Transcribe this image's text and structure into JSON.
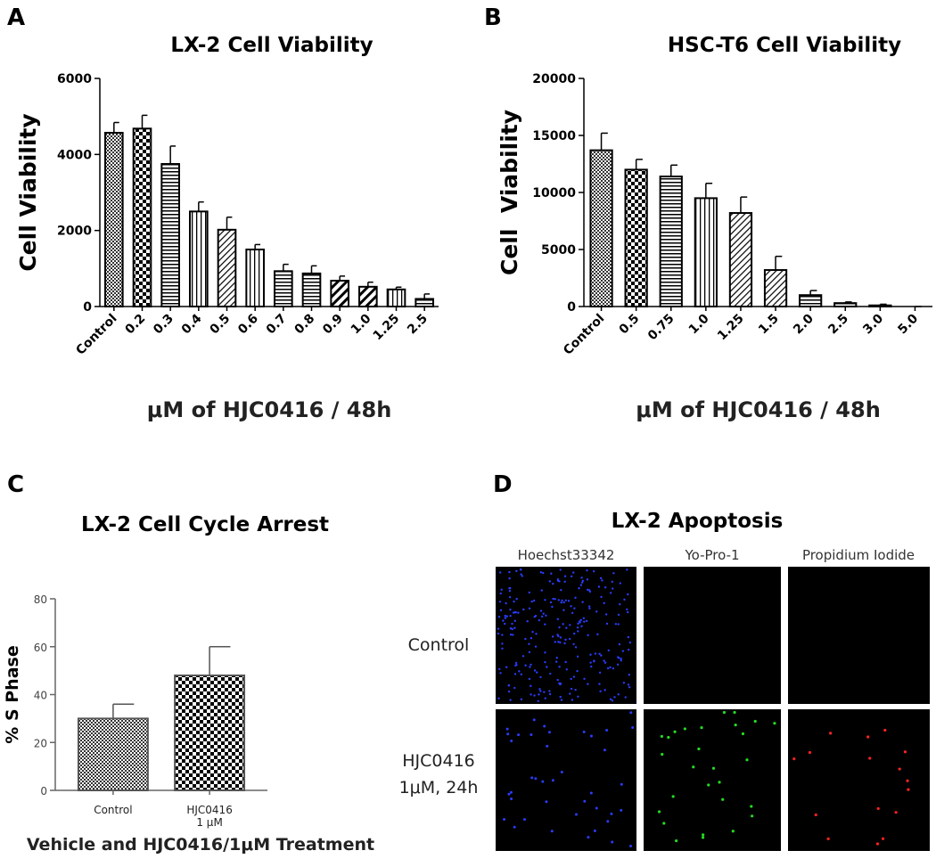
{
  "chart_data": [
    {
      "type": "bar",
      "panel": "A",
      "title": "LX-2 Cell Viability",
      "ylabel": "Cell Viability",
      "xlabel": "μM of HJC0416 / 48h",
      "categories": [
        "Control",
        "0.2",
        "0.3",
        "0.4",
        "0.5",
        "0.6",
        "0.7",
        "0.8",
        "0.9",
        "1.0",
        "1.25",
        "2.5"
      ],
      "values": [
        4570,
        4680,
        3750,
        2500,
        2020,
        1500,
        930,
        870,
        680,
        520,
        450,
        200
      ],
      "errors": [
        270,
        350,
        470,
        250,
        330,
        130,
        180,
        200,
        120,
        120,
        60,
        130
      ],
      "patterns": [
        "fine",
        "checker",
        "hlines",
        "vlines",
        "diag",
        "vlines",
        "hlines",
        "hlines",
        "diag-thick",
        "diag-thick",
        "vlines",
        "hlines"
      ],
      "color": "#000000",
      "ylim": [
        0,
        6000
      ],
      "yticks": [
        0,
        2000,
        4000,
        6000
      ]
    },
    {
      "type": "bar",
      "panel": "B",
      "title": "HSC-T6 Cell Viability",
      "ylabel": "Cell  Viability",
      "xlabel": "μM of HJC0416 / 48h",
      "categories": [
        "Control",
        "0.5",
        "0.75",
        "1.0",
        "1.25",
        "1.5",
        "2.0",
        "2.5",
        "3.0",
        "5.0"
      ],
      "values": [
        13700,
        12000,
        11400,
        9500,
        8200,
        3200,
        1000,
        300,
        100,
        0
      ],
      "errors": [
        1500,
        900,
        1000,
        1300,
        1400,
        1200,
        400,
        100,
        100,
        0
      ],
      "patterns": [
        "fine",
        "checker",
        "hlines",
        "vlines",
        "diag",
        "diag",
        "hlines",
        "hlines",
        "hlines",
        "hlines"
      ],
      "color": "#000000",
      "ylim": [
        0,
        20000
      ],
      "yticks": [
        0,
        5000,
        10000,
        15000,
        20000
      ]
    },
    {
      "type": "bar",
      "panel": "C",
      "title": "LX-2 Cell Cycle Arrest",
      "ylabel": "% S Phase",
      "xlabel": "Vehicle and HJC0416/1μM Treatment",
      "categories": [
        "Control",
        "HJC0416\n1 μM"
      ],
      "values": [
        30,
        48
      ],
      "errors": [
        6,
        12
      ],
      "patterns": [
        "fine",
        "checker"
      ],
      "color": "#555555",
      "ylim": [
        0,
        80
      ],
      "yticks": [
        0,
        20,
        40,
        60,
        80
      ]
    }
  ],
  "panel_d": {
    "panel": "D",
    "title": "LX-2 Apoptosis",
    "columns": [
      "Hoechst33342",
      "Yo-Pro-1",
      "Propidium Iodide"
    ],
    "rows": [
      "Control",
      "HJC0416\n1μM, 24h"
    ]
  }
}
